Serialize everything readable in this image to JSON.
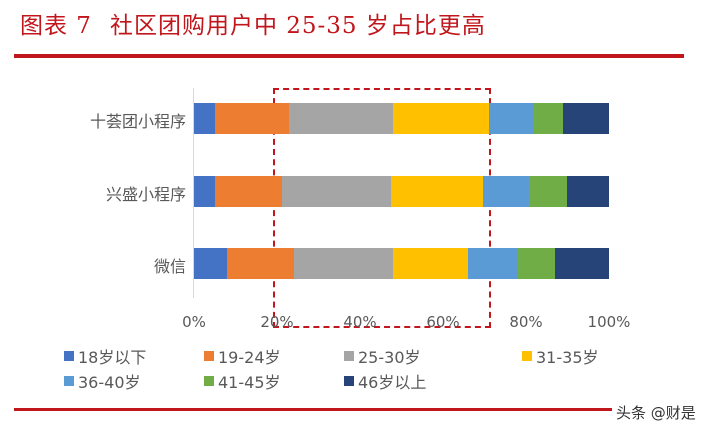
{
  "title": {
    "figure_no": "图表 7",
    "text": "社区团购用户中 25-35 岁占比更高"
  },
  "watermark": "头条 @财是",
  "colors": {
    "title": "#c0161c",
    "highlight_box": "#c0161c"
  },
  "chart_data": {
    "type": "bar",
    "orientation": "horizontal",
    "stacked": "percent",
    "title": "社区团购用户中 25-35 岁占比更高",
    "categories": [
      "十荟团小程序",
      "兴盛小程序",
      "微信"
    ],
    "series": [
      {
        "name": "18岁以下",
        "color": "#4472c4",
        "values": [
          5,
          5,
          8
        ]
      },
      {
        "name": "19-24岁",
        "color": "#ed7d31",
        "values": [
          18,
          16,
          16
        ]
      },
      {
        "name": "25-30岁",
        "color": "#a5a5a5",
        "values": [
          25,
          26,
          24
        ]
      },
      {
        "name": "31-35岁",
        "color": "#ffc000",
        "values": [
          23,
          22,
          18
        ]
      },
      {
        "name": "36-40岁",
        "color": "#5b9bd5",
        "values": [
          11,
          11,
          12
        ]
      },
      {
        "name": "41-45岁",
        "color": "#70ad47",
        "values": [
          7,
          9,
          9
        ]
      },
      {
        "name": "46岁以上",
        "color": "#264478",
        "values": [
          11,
          10,
          13
        ]
      }
    ],
    "xlabel": "",
    "ylabel": "",
    "xlim": [
      0,
      100
    ],
    "x_ticks": [
      "0%",
      "20%",
      "40%",
      "60%",
      "80%",
      "100%"
    ],
    "grid": false,
    "legend_position": "bottom",
    "annotations": [
      "dashed red box highlighting ~19%-72% range (25-35 age groups)"
    ]
  }
}
